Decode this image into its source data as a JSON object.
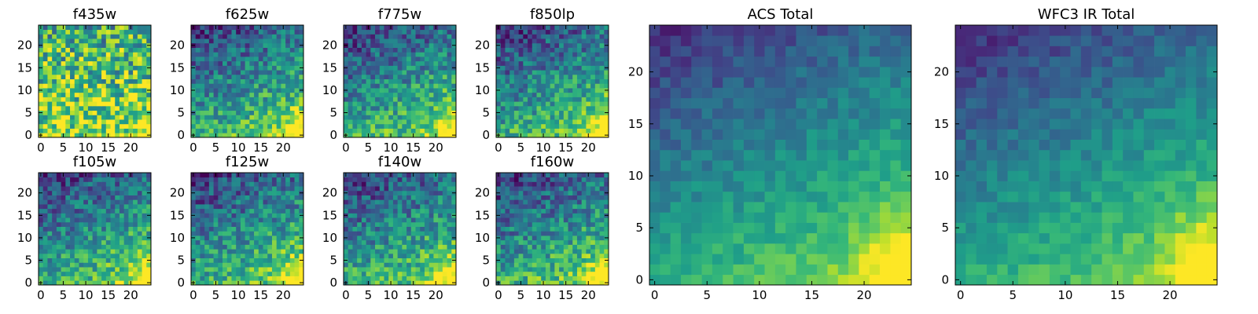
{
  "chart_data": {
    "type": "heatmap",
    "colormap": "viridis",
    "grid_size": 25,
    "panels": [
      {
        "id": "f435w",
        "title": "f435w",
        "xticks": [
          0,
          5,
          10,
          15,
          20
        ],
        "yticks": [
          0,
          5,
          10,
          15,
          20
        ],
        "pattern": "noisy"
      },
      {
        "id": "f625w",
        "title": "f625w",
        "xticks": [
          0,
          5,
          10,
          15,
          20
        ],
        "yticks": [
          0,
          5,
          10,
          15,
          20
        ],
        "pattern": "gradient"
      },
      {
        "id": "f775w",
        "title": "f775w",
        "xticks": [
          0,
          5,
          10,
          15,
          20
        ],
        "yticks": [
          0,
          5,
          10,
          15,
          20
        ],
        "pattern": "gradient"
      },
      {
        "id": "f850lp",
        "title": "f850lp",
        "xticks": [
          0,
          5,
          10,
          15,
          20
        ],
        "yticks": [
          0,
          5,
          10,
          15,
          20
        ],
        "pattern": "gradient"
      },
      {
        "id": "f105w",
        "title": "f105w",
        "xticks": [
          0,
          5,
          10,
          15,
          20
        ],
        "yticks": [
          0,
          5,
          10,
          15,
          20
        ],
        "pattern": "gradient"
      },
      {
        "id": "f125w",
        "title": "f125w",
        "xticks": [
          0,
          5,
          10,
          15,
          20
        ],
        "yticks": [
          0,
          5,
          10,
          15,
          20
        ],
        "pattern": "gradient"
      },
      {
        "id": "f140w",
        "title": "f140w",
        "xticks": [
          0,
          5,
          10,
          15,
          20
        ],
        "yticks": [
          0,
          5,
          10,
          15,
          20
        ],
        "pattern": "gradient"
      },
      {
        "id": "f160w",
        "title": "f160w",
        "xticks": [
          0,
          5,
          10,
          15,
          20
        ],
        "yticks": [
          0,
          5,
          10,
          15,
          20
        ],
        "pattern": "gradient"
      },
      {
        "id": "acs_total",
        "title": "ACS Total",
        "xticks": [
          0,
          5,
          10,
          15,
          20
        ],
        "yticks": [
          0,
          5,
          10,
          15,
          20
        ],
        "pattern": "smooth"
      },
      {
        "id": "wfc3_ir_total",
        "title": "WFC3 IR Total",
        "xticks": [
          0,
          5,
          10,
          15,
          20
        ],
        "yticks": [
          0,
          5,
          10,
          15,
          20
        ],
        "pattern": "smooth"
      }
    ]
  }
}
